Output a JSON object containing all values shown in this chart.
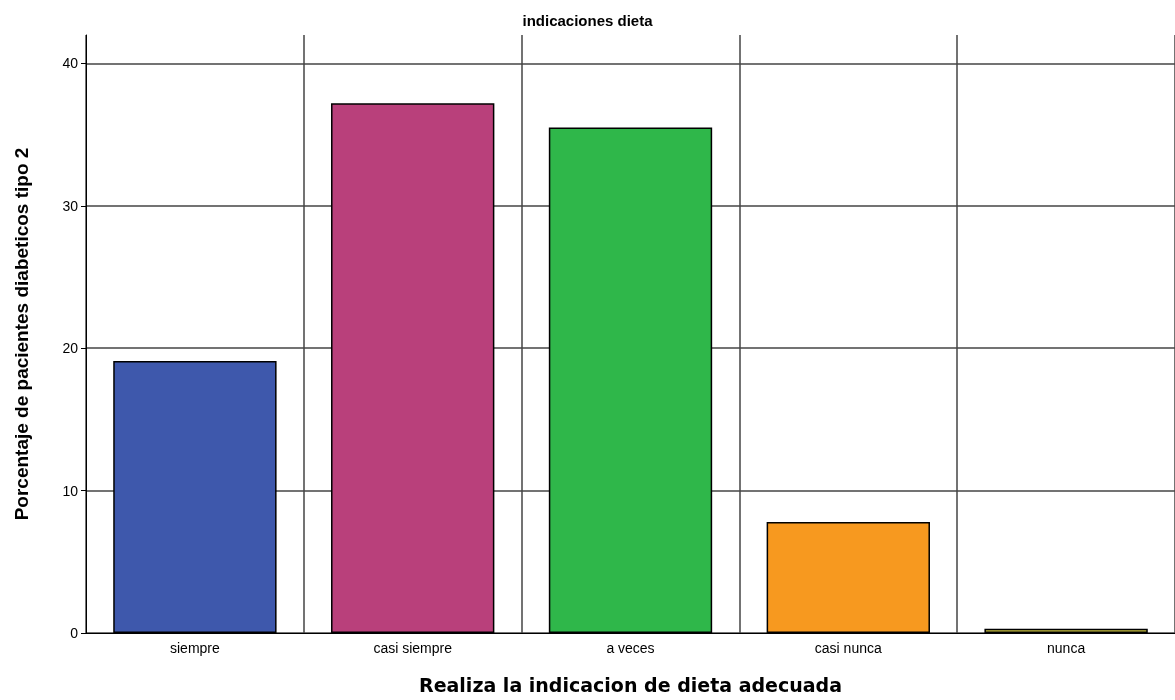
{
  "chart_data": {
    "type": "bar",
    "title": "indicaciones dieta",
    "xlabel": "Realiza la indicacion de dieta adecuada",
    "ylabel": "Porcentaje de pacientes diabeticos tipo 2",
    "categories": [
      "siempre",
      "casi siempre",
      "a veces",
      "casi nunca",
      "nunca"
    ],
    "values": [
      19.1,
      37.2,
      35.5,
      7.8,
      0.3
    ],
    "colors": [
      "#3e58ac",
      "#b9407b",
      "#2fb74a",
      "#f7991f",
      "#c9c140"
    ],
    "ylim": [
      0,
      42
    ],
    "yticks": [
      0,
      10,
      20,
      30,
      40
    ],
    "grid": true
  }
}
